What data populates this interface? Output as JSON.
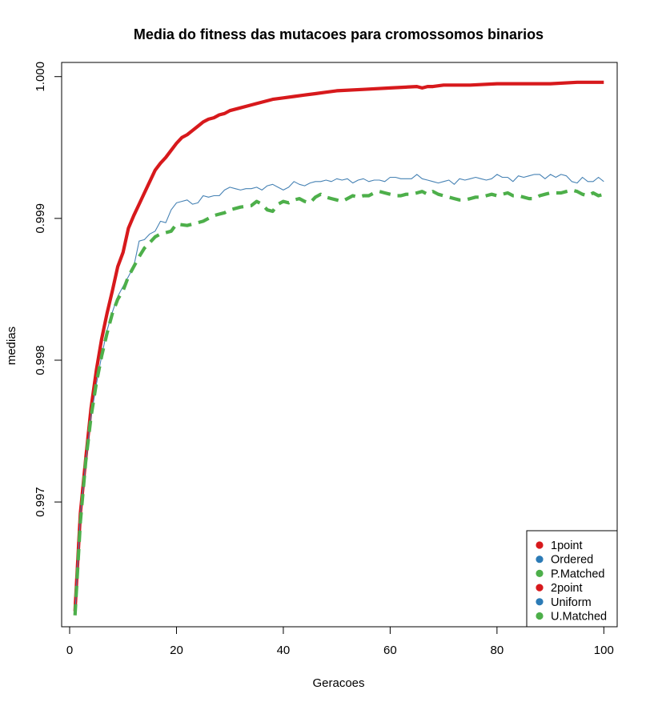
{
  "chart_data": {
    "type": "line",
    "title": "Media do fitness das mutacoes para cromossomos binarios",
    "xlabel": "Geracoes",
    "ylabel": "medias",
    "xlim": [
      -1.5,
      102.5
    ],
    "ylim": [
      0.99612,
      1.0001
    ],
    "x_ticks": [
      0,
      20,
      40,
      60,
      80,
      100
    ],
    "x_tick_labels": [
      "0",
      "20",
      "40",
      "60",
      "80",
      "100"
    ],
    "y_ticks": [
      0.997,
      0.998,
      0.999,
      1.0
    ],
    "y_tick_labels": [
      "0.997",
      "0.998",
      "0.999",
      "1.000"
    ],
    "legend_position": "bottom-right",
    "legend": [
      {
        "label": "1point",
        "color": "#d7191c"
      },
      {
        "label": "Ordered",
        "color": "#2c7bb6"
      },
      {
        "label": "P.Matched",
        "color": "#4daf4a"
      },
      {
        "label": "2point",
        "color": "#d7191c"
      },
      {
        "label": "Uniform",
        "color": "#2c7bb6"
      },
      {
        "label": "U.Matched",
        "color": "#4daf4a"
      }
    ],
    "series": [
      {
        "name": "2point",
        "color": "#d7191c",
        "style": "solid-thick",
        "x": [
          1,
          2,
          3,
          4,
          5,
          6,
          7,
          8,
          9,
          10,
          11,
          12,
          13,
          14,
          15,
          16,
          17,
          18,
          19,
          20,
          21,
          22,
          23,
          24,
          25,
          26,
          27,
          28,
          29,
          30,
          32,
          34,
          36,
          38,
          40,
          42,
          44,
          46,
          48,
          50,
          55,
          60,
          65,
          66,
          67,
          68,
          70,
          75,
          80,
          85,
          88,
          90,
          95,
          100
        ],
        "y": [
          0.99623,
          0.99692,
          0.9973,
          0.99766,
          0.99793,
          0.99815,
          0.99833,
          0.99849,
          0.99866,
          0.99876,
          0.99893,
          0.99902,
          0.9991,
          0.99918,
          0.99926,
          0.99934,
          0.99939,
          0.99943,
          0.99948,
          0.99953,
          0.99957,
          0.99959,
          0.99962,
          0.99965,
          0.99968,
          0.9997,
          0.99971,
          0.99973,
          0.99974,
          0.99976,
          0.99978,
          0.9998,
          0.99982,
          0.99984,
          0.99985,
          0.99986,
          0.99987,
          0.99988,
          0.99989,
          0.9999,
          0.99991,
          0.99992,
          0.99993,
          0.99992,
          0.99993,
          0.99993,
          0.99994,
          0.99994,
          0.99995,
          0.99995,
          0.99995,
          0.99995,
          0.99996,
          0.99996
        ]
      },
      {
        "name": "Uniform",
        "color": "#4682b4",
        "style": "solid-thin",
        "x": [
          1,
          2,
          3,
          4,
          5,
          6,
          7,
          8,
          9,
          10,
          11,
          12,
          13,
          14,
          15,
          16,
          17,
          18,
          19,
          20,
          21,
          22,
          23,
          24,
          25,
          26,
          27,
          28,
          29,
          30,
          31,
          32,
          33,
          34,
          35,
          36,
          37,
          38,
          39,
          40,
          41,
          42,
          43,
          44,
          45,
          46,
          47,
          48,
          49,
          50,
          51,
          52,
          53,
          54,
          55,
          56,
          57,
          58,
          59,
          60,
          61,
          62,
          63,
          64,
          65,
          66,
          67,
          68,
          69,
          70,
          71,
          72,
          73,
          74,
          75,
          76,
          77,
          78,
          79,
          80,
          81,
          82,
          83,
          84,
          85,
          86,
          87,
          88,
          89,
          90,
          91,
          92,
          93,
          94,
          95,
          96,
          97,
          98,
          99,
          100
        ],
        "y": [
          0.99621,
          0.9969,
          0.99727,
          0.9976,
          0.99783,
          0.99803,
          0.99821,
          0.99834,
          0.99845,
          0.99852,
          0.99859,
          0.99866,
          0.99884,
          0.99885,
          0.99889,
          0.99891,
          0.99898,
          0.99897,
          0.99906,
          0.99911,
          0.99912,
          0.99913,
          0.9991,
          0.99911,
          0.99916,
          0.99915,
          0.99916,
          0.99916,
          0.9992,
          0.99922,
          0.99921,
          0.9992,
          0.99921,
          0.99921,
          0.99922,
          0.9992,
          0.99923,
          0.99924,
          0.99922,
          0.9992,
          0.99922,
          0.99926,
          0.99924,
          0.99923,
          0.99925,
          0.99926,
          0.99926,
          0.99927,
          0.99926,
          0.99928,
          0.99927,
          0.99928,
          0.99925,
          0.99927,
          0.99928,
          0.99926,
          0.99927,
          0.99927,
          0.99926,
          0.99929,
          0.99929,
          0.99928,
          0.99928,
          0.99928,
          0.99931,
          0.99928,
          0.99927,
          0.99926,
          0.99925,
          0.99926,
          0.99927,
          0.99924,
          0.99928,
          0.99927,
          0.99928,
          0.99929,
          0.99928,
          0.99927,
          0.99928,
          0.99931,
          0.99929,
          0.99929,
          0.99926,
          0.9993,
          0.99929,
          0.9993,
          0.99931,
          0.99931,
          0.99928,
          0.99931,
          0.99929,
          0.99931,
          0.9993,
          0.99926,
          0.99925,
          0.99929,
          0.99926,
          0.99926,
          0.99929,
          0.99926
        ]
      },
      {
        "name": "U.Matched",
        "color": "#4daf4a",
        "style": "dashed-thick",
        "x": [
          1,
          2,
          3,
          4,
          5,
          6,
          7,
          8,
          9,
          10,
          11,
          12,
          13,
          14,
          15,
          16,
          17,
          18,
          19,
          20,
          22,
          24,
          25,
          26,
          27,
          28,
          29,
          30,
          32,
          34,
          35,
          36,
          37,
          38,
          39,
          40,
          41,
          42,
          43,
          44,
          45,
          46,
          47,
          48,
          49,
          50,
          51,
          52,
          53,
          54,
          55,
          56,
          57,
          58,
          59,
          60,
          61,
          62,
          63,
          64,
          65,
          66,
          67,
          68,
          69,
          70,
          71,
          72,
          73,
          74,
          75,
          76,
          77,
          78,
          79,
          80,
          81,
          82,
          83,
          84,
          85,
          86,
          87,
          88,
          89,
          90,
          91,
          92,
          93,
          94,
          95,
          96,
          97,
          98,
          99,
          100
        ],
        "y": [
          0.9962,
          0.99686,
          0.99728,
          0.9976,
          0.99784,
          0.99803,
          0.99819,
          0.99833,
          0.99843,
          0.99849,
          0.99859,
          0.99866,
          0.99873,
          0.99879,
          0.99883,
          0.99887,
          0.99889,
          0.9989,
          0.99891,
          0.99896,
          0.99895,
          0.99897,
          0.99898,
          0.999,
          0.99902,
          0.99903,
          0.99904,
          0.99906,
          0.99908,
          0.99909,
          0.99912,
          0.9991,
          0.99906,
          0.99905,
          0.9991,
          0.99912,
          0.99911,
          0.99913,
          0.99914,
          0.99912,
          0.99911,
          0.99915,
          0.99917,
          0.99915,
          0.99914,
          0.99913,
          0.99912,
          0.99914,
          0.99916,
          0.99915,
          0.99916,
          0.99916,
          0.99918,
          0.99919,
          0.99918,
          0.99917,
          0.99916,
          0.99916,
          0.99917,
          0.99917,
          0.99918,
          0.99919,
          0.99917,
          0.99919,
          0.99917,
          0.99916,
          0.99915,
          0.99914,
          0.99913,
          0.99913,
          0.99914,
          0.99915,
          0.99915,
          0.99916,
          0.99917,
          0.99916,
          0.99917,
          0.99918,
          0.99916,
          0.99916,
          0.99915,
          0.99914,
          0.99914,
          0.99916,
          0.99917,
          0.99918,
          0.99918,
          0.99918,
          0.99919,
          0.9992,
          0.99919,
          0.99917,
          0.99916,
          0.99918,
          0.99916,
          0.99917
        ]
      }
    ]
  }
}
